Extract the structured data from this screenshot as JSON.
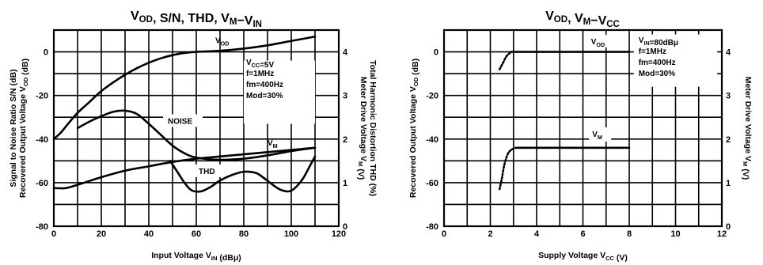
{
  "chart_data": [
    {
      "type": "line",
      "title": "V",
      "title_subs": [
        "OD",
        "M",
        "IN"
      ],
      "title_parts": [
        ", S/N, THD, V",
        "−V"
      ],
      "x": {
        "label_pre": "Input Voltage V",
        "label_sub": "IN",
        "label_post": " (dBμ)",
        "lim": [
          0,
          120
        ],
        "ticks": [
          "0",
          "20",
          "40",
          "60",
          "80",
          "100",
          "120"
        ],
        "grid_step": 10
      },
      "y_left": {
        "label_line1": "Signal to Noise Ratio S/N (dB)",
        "label_line2_pre": "Recovered Output Voltage V",
        "label_line2_sub": "OD",
        "label_line2_post": " (dB)",
        "lim": [
          -80,
          10
        ],
        "ticks": [
          "0",
          "-20",
          "-40",
          "-60",
          "-80"
        ]
      },
      "y_right": {
        "label_line1_pre": "Meter Drive Voltage V",
        "label_line1_sub": "M",
        "label_line1_post": " (V)",
        "label_line2": "Total Harmonic Distortion THD (%)",
        "lim": [
          0,
          4.5
        ],
        "ticks": [
          "4",
          "3",
          "2",
          "1",
          "0"
        ]
      },
      "grid": true,
      "annotation_lines": [
        {
          "pre": "V",
          "sub": "CC",
          "post": "=5V"
        },
        {
          "pre": "f=1MHz",
          "sub": "",
          "post": ""
        },
        {
          "pre": "fm=400Hz",
          "sub": "",
          "post": ""
        },
        {
          "pre": "Mod=30%",
          "sub": "",
          "post": ""
        }
      ],
      "series": [
        {
          "name": "V",
          "name_sub": "OD",
          "axis": "left",
          "x": [
            0,
            3,
            6,
            10,
            15,
            20,
            25,
            30,
            35,
            40,
            45,
            50,
            55,
            60,
            70,
            80,
            90,
            100,
            110
          ],
          "y": [
            -40,
            -37,
            -33,
            -28,
            -23,
            -18,
            -14,
            -10.5,
            -7.5,
            -5,
            -3,
            -1.5,
            -0.5,
            0,
            0.5,
            1.5,
            3,
            5,
            7
          ]
        },
        {
          "name": "NOISE",
          "axis": "left",
          "x": [
            10,
            15,
            20,
            25,
            30,
            35,
            40,
            45,
            50,
            55,
            60,
            70,
            80,
            90,
            100,
            110
          ],
          "y": [
            -35,
            -32,
            -29.5,
            -27.5,
            -27,
            -28.5,
            -33,
            -38,
            -43,
            -46.5,
            -48.5,
            -49.5,
            -49,
            -47.5,
            -45.5,
            -44
          ]
        },
        {
          "name": "V",
          "name_sub": "M",
          "axis": "left",
          "x": [
            0,
            5,
            10,
            20,
            30,
            40,
            50,
            60,
            70,
            80,
            90,
            100,
            110
          ],
          "y": [
            -62.5,
            -62.5,
            -61,
            -57.5,
            -54.5,
            -52.5,
            -50.5,
            -49,
            -48,
            -47,
            -46,
            -45,
            -44
          ]
        },
        {
          "name": "THD",
          "axis": "left",
          "x": [
            49,
            52,
            55,
            58,
            62,
            66,
            70,
            75,
            80,
            85,
            88,
            91,
            95,
            99,
            102,
            105,
            108,
            110
          ],
          "y": [
            -50,
            -55,
            -60,
            -63.5,
            -64,
            -62,
            -59,
            -56.5,
            -55,
            -55.5,
            -57.5,
            -60,
            -63,
            -64,
            -62,
            -58,
            -52,
            -48
          ]
        }
      ]
    },
    {
      "type": "line",
      "title": "V",
      "title_subs": [
        "OD",
        "M",
        "CC"
      ],
      "title_parts": [
        ", V",
        "−V"
      ],
      "x": {
        "label_pre": "Supply Voltage V",
        "label_sub": "CC",
        "label_post": " (V)",
        "lim": [
          0,
          12
        ],
        "ticks": [
          "0",
          "2",
          "4",
          "6",
          "8",
          "10",
          "12"
        ],
        "grid_step": 1
      },
      "y_left": {
        "label_pre": "Recovered Output Voltage V",
        "label_sub": "OD",
        "label_post": " (dB)",
        "lim": [
          -80,
          10
        ],
        "ticks": [
          "0",
          "-20",
          "-40",
          "-60",
          "-80"
        ]
      },
      "y_right": {
        "label_pre": "Meter Drive Voltage V",
        "label_sub": "M",
        "label_post": " (V)",
        "lim": [
          0,
          4.5
        ],
        "ticks": [
          "4",
          "3",
          "2",
          "1",
          "0"
        ]
      },
      "grid": true,
      "annotation_lines": [
        {
          "pre": "V",
          "sub": "IN",
          "post": "=80dBμ"
        },
        {
          "pre": "f=1MHz",
          "sub": "",
          "post": ""
        },
        {
          "pre": "fm=400Hz",
          "sub": "",
          "post": ""
        },
        {
          "pre": "Mod=30%",
          "sub": "",
          "post": ""
        }
      ],
      "series": [
        {
          "name": "V",
          "name_sub": "OD",
          "axis": "left",
          "x": [
            2.9,
            8
          ],
          "y": [
            0,
            0
          ]
        },
        {
          "name": "",
          "axis": "left",
          "dashed": true,
          "x": [
            2.4,
            2.55,
            2.7,
            2.9
          ],
          "y": [
            -8,
            -5,
            -2,
            0
          ]
        },
        {
          "name": "V",
          "name_sub": "M",
          "axis": "left",
          "x": [
            3.1,
            8
          ],
          "y": [
            -44,
            -44
          ]
        },
        {
          "name": "",
          "axis": "left",
          "dashed": true,
          "x": [
            2.4,
            2.5,
            2.6,
            2.75,
            2.9,
            3.1
          ],
          "y": [
            -63,
            -58,
            -52,
            -47,
            -45,
            -44
          ]
        }
      ]
    }
  ]
}
